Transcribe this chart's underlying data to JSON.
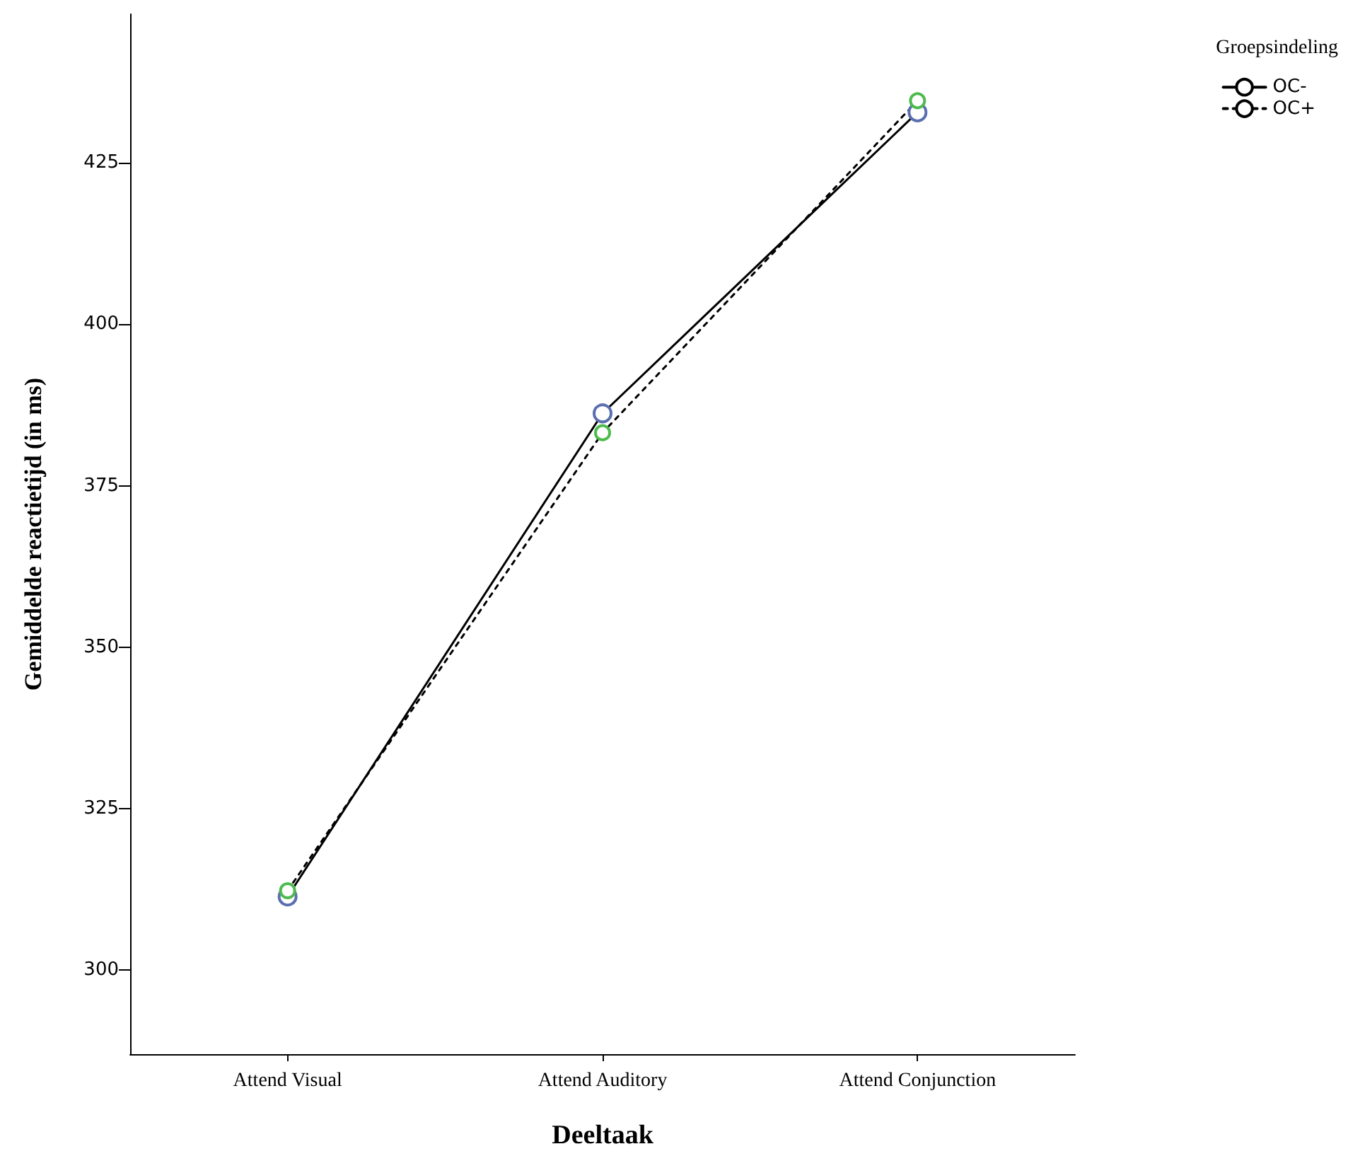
{
  "chart_data": {
    "type": "line",
    "xlabel": "Deeltaak",
    "ylabel": "Gemiddelde reactietijd (in ms)",
    "legend_title": "Groepsindeling",
    "categories": [
      "Attend Visual",
      "Attend Auditory",
      "Attend Conjunction"
    ],
    "series": [
      {
        "name": "OC-",
        "color": "#000000",
        "colors": [
          "#5b6fb0",
          "#5b6fb0",
          "#5b6fb0"
        ],
        "line_style": "solid",
        "values": [
          311.4,
          386.2,
          432.8
        ]
      },
      {
        "name": "OC+",
        "color": "#000000",
        "colors": [
          "#4cbb4c",
          "#4cbb4c",
          "#4cbb4c"
        ],
        "line_style": "dotted",
        "values": [
          312.3,
          383.2,
          434.6
        ]
      }
    ],
    "ylim": [
      287,
      448
    ],
    "yticks": [
      300,
      325,
      350,
      375,
      400,
      425
    ],
    "grid": false,
    "legend": "top right",
    "marker": "circle"
  }
}
